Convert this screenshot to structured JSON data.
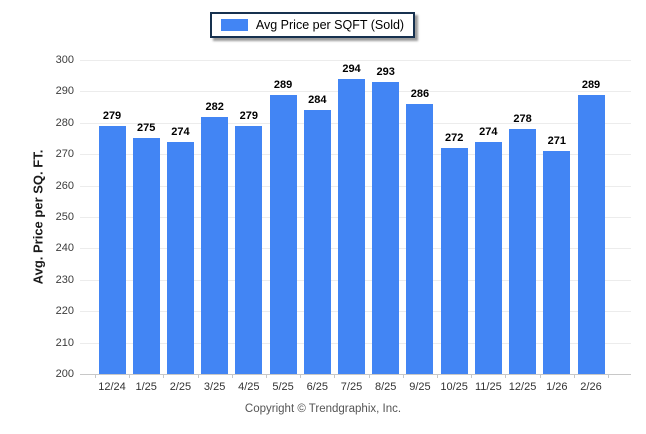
{
  "legend": {
    "label": "Avg Price per SQFT (Sold)",
    "swatch_color": "#4285F4"
  },
  "footer": {
    "copyright": "Copyright © Trendgraphix, Inc."
  },
  "chart_data": {
    "type": "bar",
    "title": "",
    "categories": [
      "12/24",
      "1/25",
      "2/25",
      "3/25",
      "4/25",
      "5/25",
      "6/25",
      "7/25",
      "8/25",
      "9/25",
      "10/25",
      "11/25",
      "12/25",
      "1/26",
      "2/26"
    ],
    "values": [
      279,
      275,
      274,
      282,
      279,
      289,
      284,
      294,
      293,
      286,
      272,
      274,
      278,
      271,
      289
    ],
    "series_name": "Avg Price per SQFT (Sold)",
    "xlabel": "",
    "ylabel": "Avg. Price per SQ. FT.",
    "ylim": [
      200,
      300
    ],
    "ytick_step": 10,
    "bar_color": "#4285F4",
    "grid": true,
    "legend_position": "top-center",
    "value_labels": true
  }
}
